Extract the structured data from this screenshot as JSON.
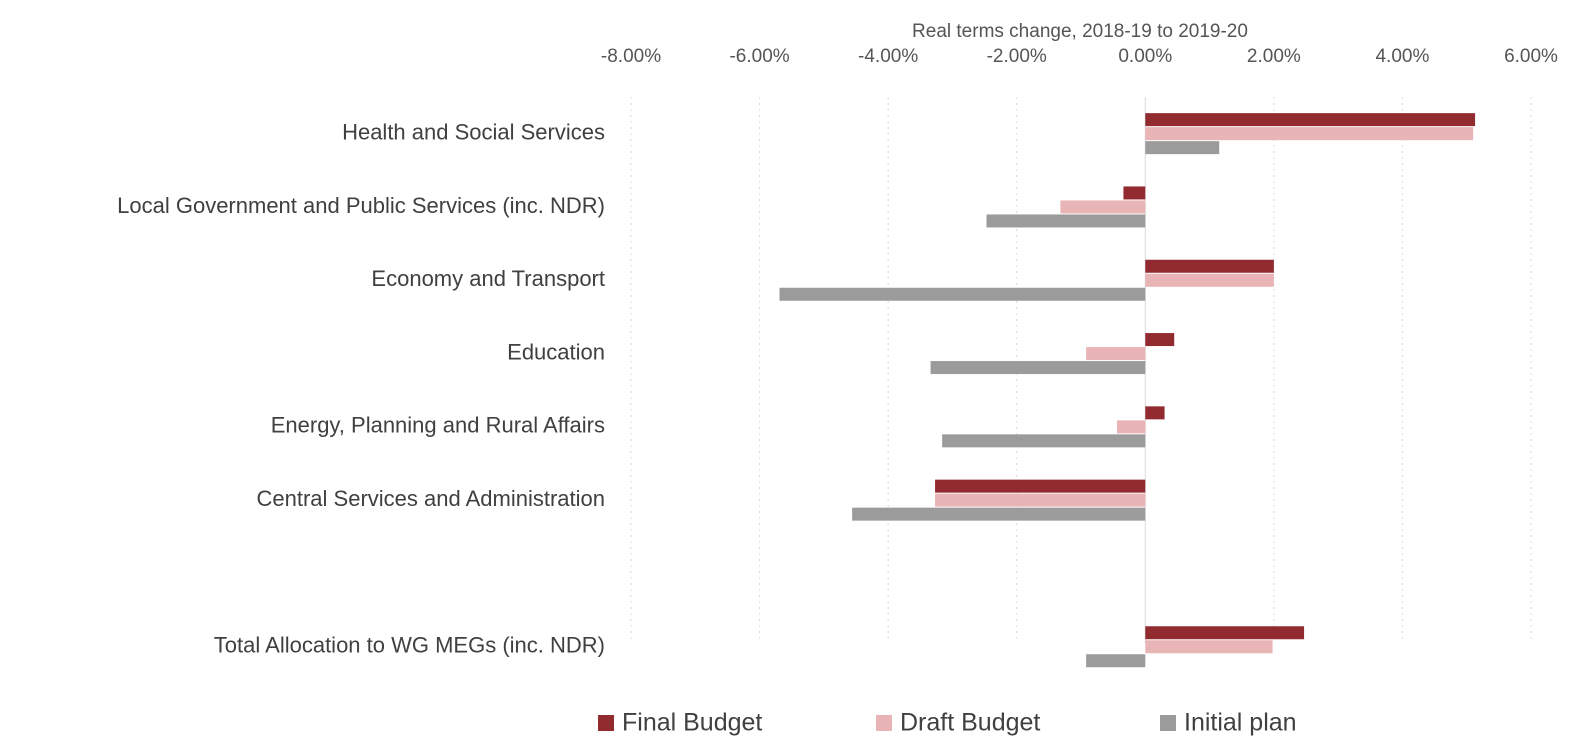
{
  "chart_data": {
    "type": "hbar",
    "xlabel": "Real terms change, 2018-19 to 2019-20",
    "categories": [
      "Health and Social Services",
      "Local Government and Public Services (inc. NDR)",
      "Economy and Transport",
      "Education",
      "Energy, Planning and Rural Affairs",
      "Central Services and Administration",
      null,
      "Total Allocation to WG MEGs (inc. NDR)"
    ],
    "series": [
      {
        "name": "Final Budget",
        "color": "#922b2f",
        "values": [
          5.13,
          -0.34,
          2.0,
          0.45,
          0.3,
          -3.27,
          null,
          2.47
        ]
      },
      {
        "name": "Draft Budget",
        "color": "#e8b4b5",
        "values": [
          5.1,
          -1.32,
          2.0,
          -0.92,
          -0.44,
          -3.27,
          null,
          1.98
        ]
      },
      {
        "name": "Initial plan",
        "color": "#9b9b9b",
        "values": [
          1.15,
          -2.47,
          -5.69,
          -3.34,
          -3.16,
          -4.56,
          null,
          -0.92
        ]
      }
    ],
    "xlim": [
      -8,
      6
    ],
    "xticks": [
      {
        "value": -8,
        "label": "-8.00%"
      },
      {
        "value": -6,
        "label": "-6.00%"
      },
      {
        "value": -4,
        "label": "-4.00%"
      },
      {
        "value": -2,
        "label": "-2.00%"
      },
      {
        "value": 0,
        "label": "0.00%"
      },
      {
        "value": 2,
        "label": "2.00%"
      },
      {
        "value": 4,
        "label": "4.00%"
      },
      {
        "value": 6,
        "label": "6.00%"
      }
    ],
    "grid": true,
    "legend": "bottom"
  }
}
